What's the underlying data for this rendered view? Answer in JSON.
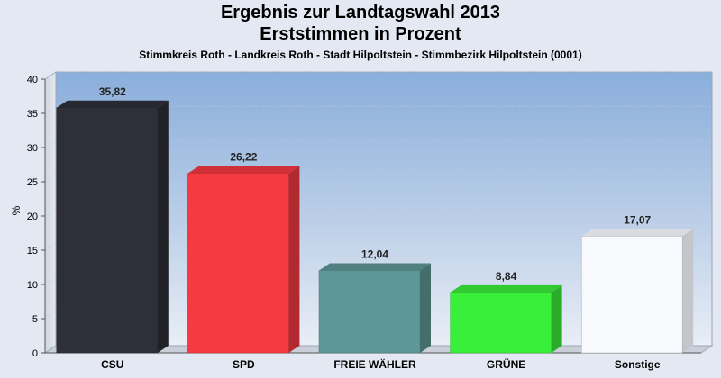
{
  "chart_data": {
    "type": "bar",
    "title": "Ergebnis zur Landtagswahl 2013",
    "title_line2": "Erststimmen in Prozent",
    "subtitle": "Stimmkreis Roth - Landkreis Roth - Stadt Hilpoltstein - Stimmbezirk Hilpoltstein (0001)",
    "xlabel": "",
    "ylabel": "%",
    "ylim": [
      0,
      40
    ],
    "yticks": [
      0,
      5,
      10,
      15,
      20,
      25,
      30,
      35,
      40
    ],
    "grid": true,
    "categories": [
      "CSU",
      "SPD",
      "FREIE WÄHLER",
      "GRÜNE",
      "Sonstige"
    ],
    "values": [
      35.82,
      26.22,
      12.04,
      8.84,
      17.07
    ],
    "value_labels": [
      "35,82",
      "26,22",
      "12,04",
      "8,84",
      "17,07"
    ],
    "colors": [
      "#2e2f38",
      "#f53a42",
      "#5e9896",
      "#3aef3a",
      "#f8f9fc"
    ],
    "background": "#e3e8f2"
  }
}
